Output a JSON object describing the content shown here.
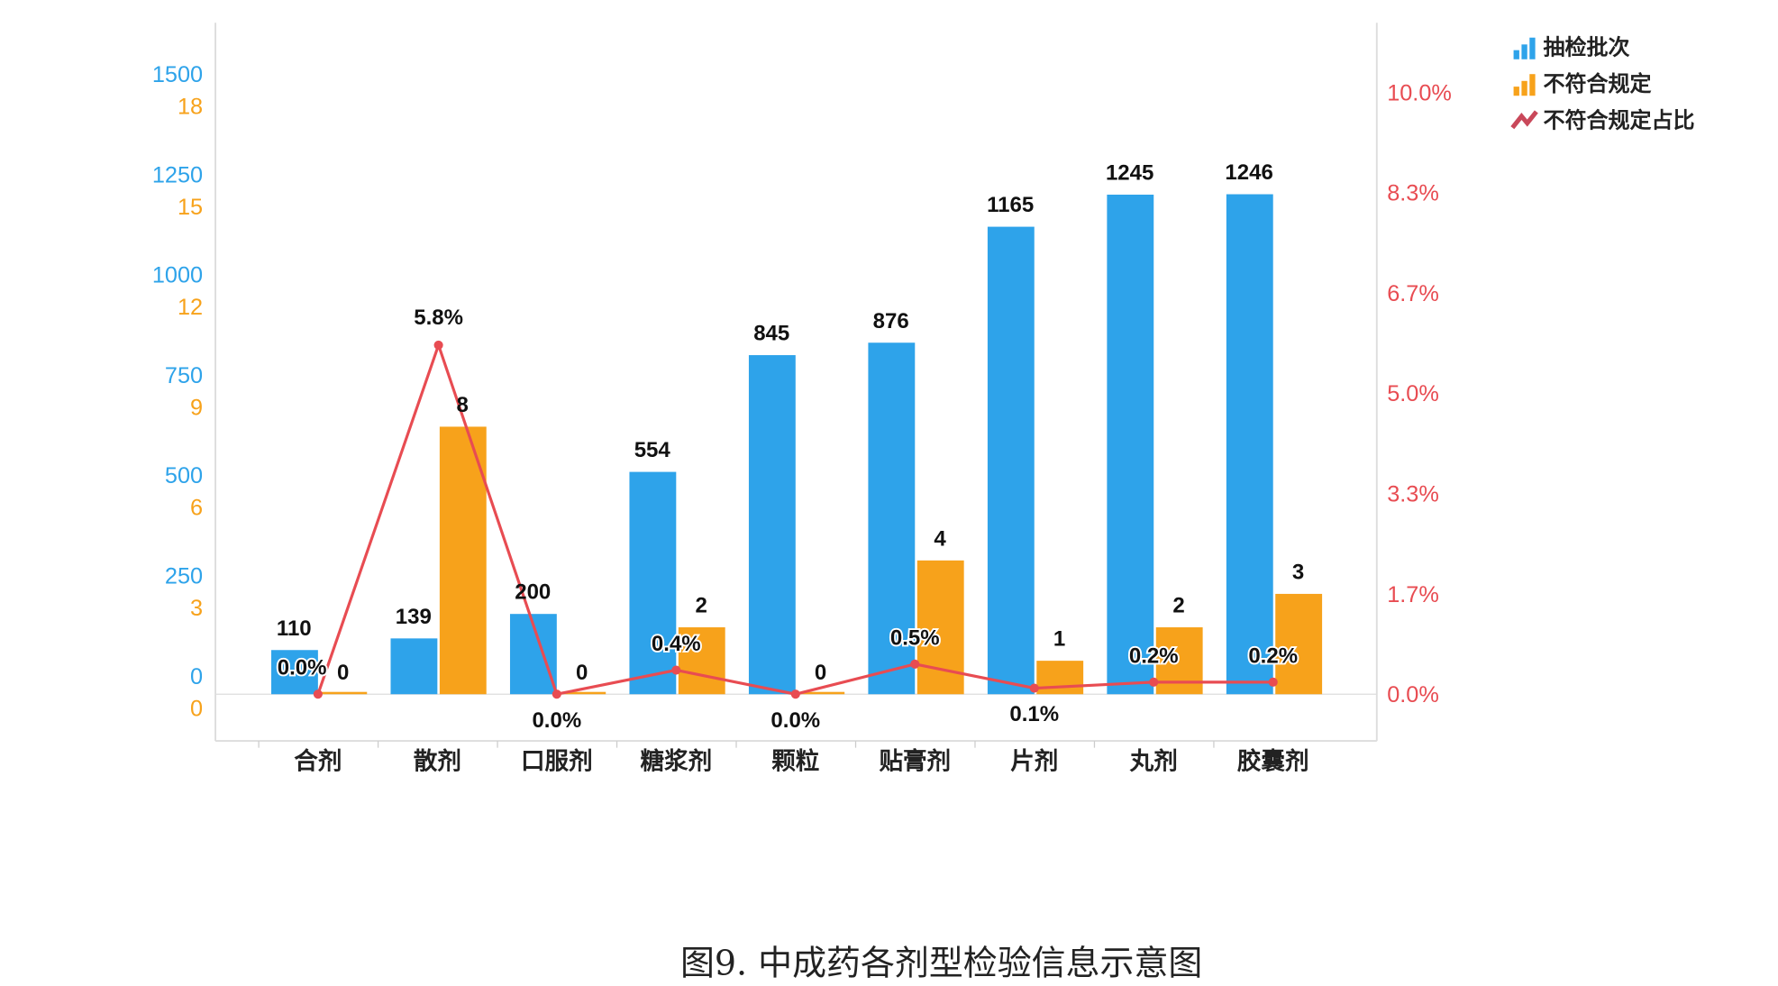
{
  "chart_data": {
    "type": "bar+line",
    "title": "",
    "caption": "图9. 中成药各剂型检验信息示意图",
    "categories": [
      "合剂",
      "散剂",
      "口服剂",
      "糖浆剂",
      "颗粒",
      "贴膏剂",
      "片剂",
      "丸剂",
      "胶囊剂"
    ],
    "series": [
      {
        "name": "抽检批次",
        "type": "bar",
        "axis": "left-primary",
        "color": "#2ea3ea",
        "values": [
          110,
          139,
          200,
          554,
          845,
          876,
          1165,
          1245,
          1246
        ]
      },
      {
        "name": "不符合规定",
        "type": "bar",
        "axis": "left-secondary",
        "color": "#f7a21b",
        "values": [
          0,
          8,
          0,
          2,
          0,
          4,
          1,
          2,
          3
        ]
      },
      {
        "name": "不符合规定占比",
        "type": "line",
        "axis": "right",
        "color": "#e84c52",
        "values": [
          0.0,
          5.8,
          0.0,
          0.4,
          0.0,
          0.5,
          0.1,
          0.2,
          0.2
        ],
        "labels": [
          "0.0%",
          "5.8%",
          "0.0%",
          "0.4%",
          "0.0%",
          "0.5%",
          "0.1%",
          "0.2%",
          "0.2%"
        ],
        "label_side": [
          "above",
          "above",
          "below",
          "above",
          "below",
          "above",
          "below",
          "above",
          "above"
        ]
      }
    ],
    "y_left_primary": {
      "range": [
        0,
        1500
      ],
      "ticks": [
        "0",
        "250",
        "500",
        "750",
        "1000",
        "1250",
        "1500"
      ],
      "color": "#2ea3ea"
    },
    "y_left_secondary": {
      "range": [
        0,
        18
      ],
      "ticks": [
        "0",
        "3",
        "6",
        "9",
        "12",
        "15",
        "18"
      ],
      "color": "#f7a21b"
    },
    "y_right": {
      "range": [
        0,
        10
      ],
      "ticks": [
        "0.0%",
        "1.7%",
        "3.3%",
        "5.0%",
        "6.7%",
        "8.3%",
        "10.0%"
      ],
      "color": "#e84c52"
    },
    "legend": {
      "placement": "top-right",
      "entries": [
        "抽检批次",
        "不符合规定",
        "不符合规定占比"
      ]
    },
    "grid": false
  }
}
